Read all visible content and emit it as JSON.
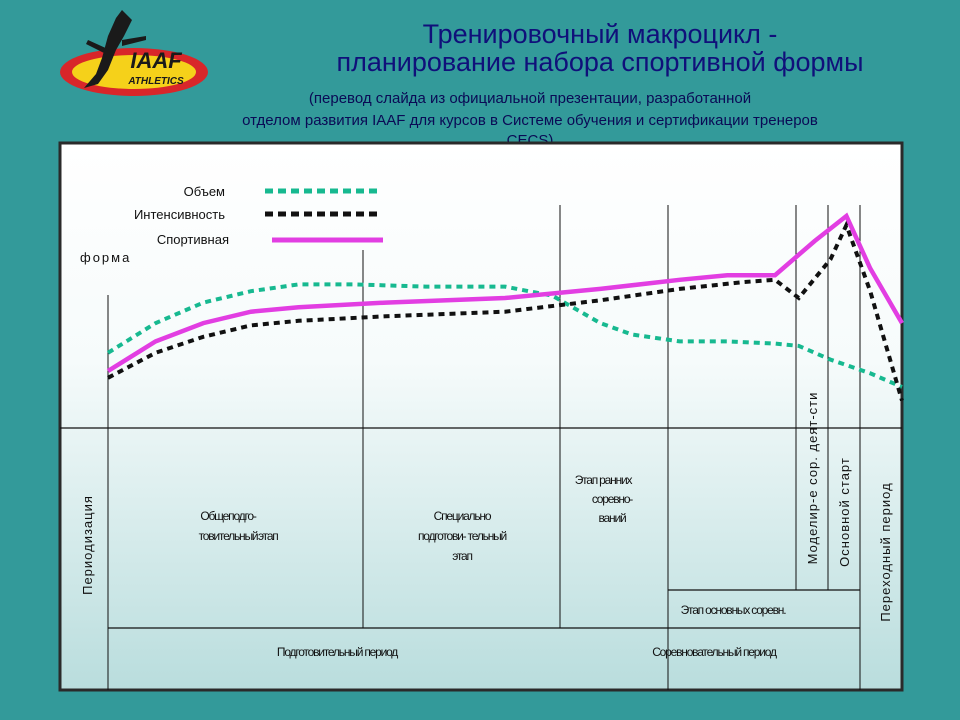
{
  "logo": {
    "line1": "IAAF",
    "line2": "ATHLETICS"
  },
  "title": {
    "line1": "Тренировочный макроцикл -",
    "line2": "планирование набора спортивной формы"
  },
  "subtitle": {
    "line1": "(перевод слайда из официальной презентации, разработанной",
    "line2": "отделом развития IAAF для курсов в Системе обучения и сертификации тренеров",
    "line3": "CECS)"
  },
  "colors": {
    "background": "#339a9a",
    "title": "#10107a",
    "volume": "#17b990",
    "intensity": "#111111",
    "form": "#e23ee2"
  },
  "chart_data": {
    "type": "line",
    "legend": {
      "volume": "Объем",
      "intensity": "Интенсивность",
      "form_line1": "Спортивная",
      "form_line2": "форма"
    },
    "x_range": [
      0,
      100
    ],
    "y_range": [
      0,
      100
    ],
    "series": [
      {
        "name": "Объем",
        "style": "dashed",
        "x": [
          0,
          6,
          12,
          18,
          24,
          31,
          40,
          50,
          56,
          62,
          66,
          72,
          78,
          84,
          87,
          91,
          96,
          100
        ],
        "y": [
          33,
          46,
          55,
          60,
          63,
          63,
          62,
          62,
          58,
          46,
          41,
          38,
          38,
          37,
          36,
          30,
          24,
          18
        ]
      },
      {
        "name": "Интенсивность",
        "style": "dotted",
        "x": [
          0,
          6,
          12,
          18,
          24,
          35,
          50,
          62,
          72,
          80,
          84,
          87,
          91,
          93,
          96,
          100
        ],
        "y": [
          22,
          33,
          40,
          45,
          47,
          49,
          51,
          56,
          61,
          64,
          65,
          57,
          74,
          89,
          60,
          12
        ]
      },
      {
        "name": "Спортивная форма",
        "style": "solid",
        "x": [
          0,
          6,
          12,
          18,
          24,
          35,
          50,
          62,
          72,
          78,
          82,
          84,
          89,
          93,
          96,
          100
        ],
        "y": [
          25,
          38,
          46,
          51,
          53,
          55,
          57,
          61,
          65,
          67,
          67,
          67,
          82,
          93,
          70,
          46
        ]
      }
    ],
    "periodization": {
      "label": "Периодизация",
      "phases": [
        {
          "line1": "Общеподго-",
          "line2": "товительный",
          "line3": "этап"
        },
        {
          "line1": "Специально",
          "line2": "подготови- тельный",
          "line3": "этап"
        },
        {
          "line1": "Этап ранних",
          "line2": "соревно-",
          "line3": "ваний"
        }
      ],
      "main_competitions": "Этап основных соревн.",
      "vertical_labels": {
        "modeling": "Моделир-е сор. деят-сти",
        "main_start": "Основной старт",
        "transition": "Переходный период"
      },
      "periods": {
        "preparatory": "Подготовительный период",
        "competitive": "Соревновательный период"
      }
    }
  }
}
